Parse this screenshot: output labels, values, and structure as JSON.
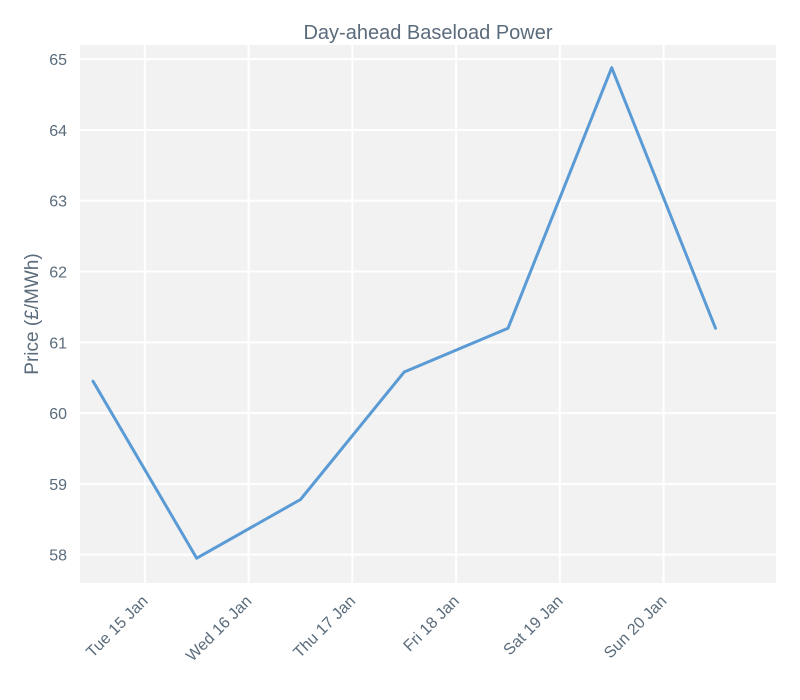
{
  "chart_data": {
    "type": "line",
    "title": "Day-ahead Baseload Power",
    "xlabel": "",
    "ylabel": "Price (£/MWh)",
    "x_ticks": [
      "Tue 15 Jan",
      "Wed 16 Jan",
      "Thu 17 Jan",
      "Fri 18 Jan",
      "Sat 19 Jan",
      "Sun 20 Jan"
    ],
    "y_ticks": [
      58,
      59,
      60,
      61,
      62,
      63,
      64,
      65
    ],
    "ylim": [
      57.6,
      65.2
    ],
    "xlim": [
      "2019-01-14 09:00",
      "2019-01-21 02:00"
    ],
    "grid": true,
    "series": [
      {
        "color": "#5b9bd5",
        "x": [
          "2019-01-14 12:00",
          "2019-01-15 12:00",
          "2019-01-16 12:00",
          "2019-01-17 12:00",
          "2019-01-18 12:00",
          "2019-01-19 12:00",
          "2019-01-20 12:00"
        ],
        "values": [
          60.45,
          57.95,
          58.78,
          60.58,
          61.2,
          64.88,
          61.2
        ]
      }
    ],
    "colors": {
      "background": "#f2f2f2",
      "grid": "#ffffff",
      "text": "#5a6b7b",
      "line": "#5b9bd5"
    }
  }
}
